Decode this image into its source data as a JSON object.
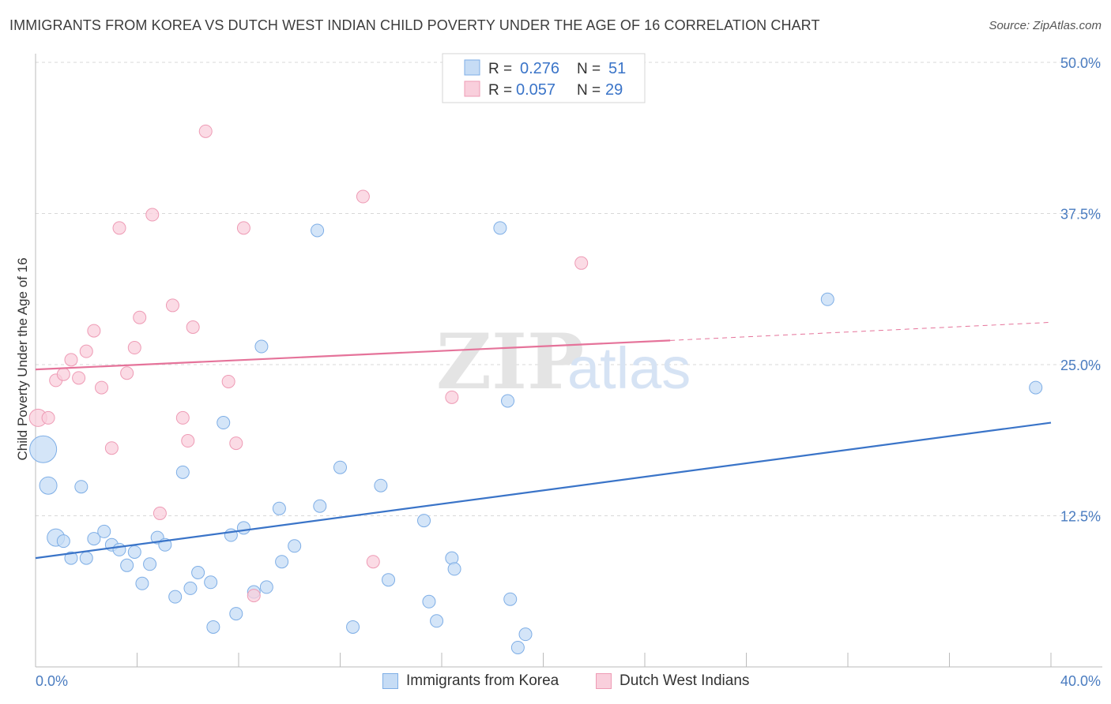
{
  "title": "IMMIGRANTS FROM KOREA VS DUTCH WEST INDIAN CHILD POVERTY UNDER THE AGE OF 16 CORRELATION CHART",
  "source": "Source: ZipAtlas.com",
  "watermark": {
    "zip": "ZIP",
    "atlas": "atlas"
  },
  "colors": {
    "blue": "#3a74c8",
    "blue_fill": "#c6dcf5",
    "blue_stroke": "#7eaee6",
    "pink": "#e5739a",
    "pink_fill": "#f9cfdc",
    "pink_stroke": "#ee9bb5",
    "grid": "#d8d8d8",
    "tick_text": "#4a7cc0"
  },
  "legend": {
    "r_label": "R =",
    "n_label": "N =",
    "rows": [
      {
        "series": "Immigrants from Korea",
        "r": "0.276",
        "n": "51"
      },
      {
        "series": "Dutch West Indians",
        "r": "0.057",
        "n": "29"
      }
    ]
  },
  "chart_data": {
    "type": "scatter",
    "title": "IMMIGRANTS FROM KOREA VS DUTCH WEST INDIAN CHILD POVERTY UNDER THE AGE OF 16 CORRELATION CHART",
    "xlabel": "",
    "ylabel": "Child Poverty Under the Age of 16",
    "xlim": [
      0,
      40
    ],
    "ylim": [
      0,
      50
    ],
    "x_tick_labels": [
      "0.0%",
      "40.0%"
    ],
    "y_ticks": [
      12.5,
      25.0,
      37.5,
      50.0
    ],
    "y_tick_labels": [
      "12.5%",
      "25.0%",
      "37.5%",
      "50.0%"
    ],
    "grid": true,
    "legend_position": "top-center",
    "series": [
      {
        "name": "Immigrants from Korea",
        "color": "#3a74c8",
        "trend": {
          "x": [
            0,
            40
          ],
          "y": [
            9.0,
            20.2
          ]
        },
        "points": [
          {
            "x": 0.3,
            "y": 18.0,
            "big": 2
          },
          {
            "x": 0.5,
            "y": 15.0,
            "big": 1
          },
          {
            "x": 0.8,
            "y": 10.7,
            "big": 1
          },
          {
            "x": 1.1,
            "y": 10.4
          },
          {
            "x": 1.4,
            "y": 9.0
          },
          {
            "x": 1.8,
            "y": 14.9
          },
          {
            "x": 2.0,
            "y": 9.0
          },
          {
            "x": 2.3,
            "y": 10.6
          },
          {
            "x": 2.7,
            "y": 11.2
          },
          {
            "x": 3.0,
            "y": 10.1
          },
          {
            "x": 3.3,
            "y": 9.7
          },
          {
            "x": 3.6,
            "y": 8.4
          },
          {
            "x": 3.9,
            "y": 9.5
          },
          {
            "x": 4.2,
            "y": 6.9
          },
          {
            "x": 4.5,
            "y": 8.5
          },
          {
            "x": 4.8,
            "y": 10.7
          },
          {
            "x": 5.1,
            "y": 10.1
          },
          {
            "x": 5.5,
            "y": 5.8
          },
          {
            "x": 5.8,
            "y": 16.1
          },
          {
            "x": 6.1,
            "y": 6.5
          },
          {
            "x": 6.4,
            "y": 7.8
          },
          {
            "x": 6.9,
            "y": 7.0
          },
          {
            "x": 7.0,
            "y": 3.3
          },
          {
            "x": 7.4,
            "y": 20.2
          },
          {
            "x": 7.7,
            "y": 10.9
          },
          {
            "x": 7.9,
            "y": 4.4
          },
          {
            "x": 8.2,
            "y": 11.5
          },
          {
            "x": 8.6,
            "y": 6.2
          },
          {
            "x": 8.9,
            "y": 26.5
          },
          {
            "x": 9.1,
            "y": 6.6
          },
          {
            "x": 9.6,
            "y": 13.1
          },
          {
            "x": 9.7,
            "y": 8.7
          },
          {
            "x": 10.2,
            "y": 10.0
          },
          {
            "x": 11.1,
            "y": 36.1
          },
          {
            "x": 11.2,
            "y": 13.3
          },
          {
            "x": 12.0,
            "y": 16.5
          },
          {
            "x": 12.5,
            "y": 3.3
          },
          {
            "x": 13.6,
            "y": 15.0
          },
          {
            "x": 13.9,
            "y": 7.2
          },
          {
            "x": 15.3,
            "y": 12.1
          },
          {
            "x": 15.5,
            "y": 5.4
          },
          {
            "x": 15.8,
            "y": 3.8
          },
          {
            "x": 16.4,
            "y": 9.0
          },
          {
            "x": 16.5,
            "y": 8.1
          },
          {
            "x": 18.3,
            "y": 36.3
          },
          {
            "x": 18.6,
            "y": 22.0
          },
          {
            "x": 18.7,
            "y": 5.6
          },
          {
            "x": 19.0,
            "y": 1.6
          },
          {
            "x": 19.3,
            "y": 2.7
          },
          {
            "x": 31.2,
            "y": 30.4
          },
          {
            "x": 39.4,
            "y": 23.1
          }
        ]
      },
      {
        "name": "Dutch West Indians",
        "color": "#e5739a",
        "trend": {
          "x": [
            0,
            25
          ],
          "y": [
            24.6,
            27.0
          ]
        },
        "trend_dashed": {
          "x": [
            25,
            40
          ],
          "y": [
            27.0,
            28.5
          ]
        },
        "points": [
          {
            "x": 0.1,
            "y": 20.6,
            "big": 1
          },
          {
            "x": 0.5,
            "y": 20.6
          },
          {
            "x": 0.8,
            "y": 23.7
          },
          {
            "x": 1.1,
            "y": 24.2
          },
          {
            "x": 1.4,
            "y": 25.4
          },
          {
            "x": 1.7,
            "y": 23.9
          },
          {
            "x": 2.0,
            "y": 26.1
          },
          {
            "x": 2.3,
            "y": 27.8
          },
          {
            "x": 2.6,
            "y": 23.1
          },
          {
            "x": 3.0,
            "y": 18.1
          },
          {
            "x": 3.3,
            "y": 36.3
          },
          {
            "x": 3.6,
            "y": 24.3
          },
          {
            "x": 3.9,
            "y": 26.4
          },
          {
            "x": 4.1,
            "y": 28.9
          },
          {
            "x": 4.6,
            "y": 37.4
          },
          {
            "x": 4.9,
            "y": 12.7
          },
          {
            "x": 5.4,
            "y": 29.9
          },
          {
            "x": 5.8,
            "y": 20.6
          },
          {
            "x": 6.0,
            "y": 18.7
          },
          {
            "x": 6.2,
            "y": 28.1
          },
          {
            "x": 6.7,
            "y": 44.3
          },
          {
            "x": 7.6,
            "y": 23.6
          },
          {
            "x": 7.9,
            "y": 18.5
          },
          {
            "x": 8.2,
            "y": 36.3
          },
          {
            "x": 8.6,
            "y": 5.9
          },
          {
            "x": 12.9,
            "y": 38.9
          },
          {
            "x": 13.3,
            "y": 8.7
          },
          {
            "x": 16.4,
            "y": 22.3
          },
          {
            "x": 21.5,
            "y": 33.4
          }
        ]
      }
    ]
  }
}
